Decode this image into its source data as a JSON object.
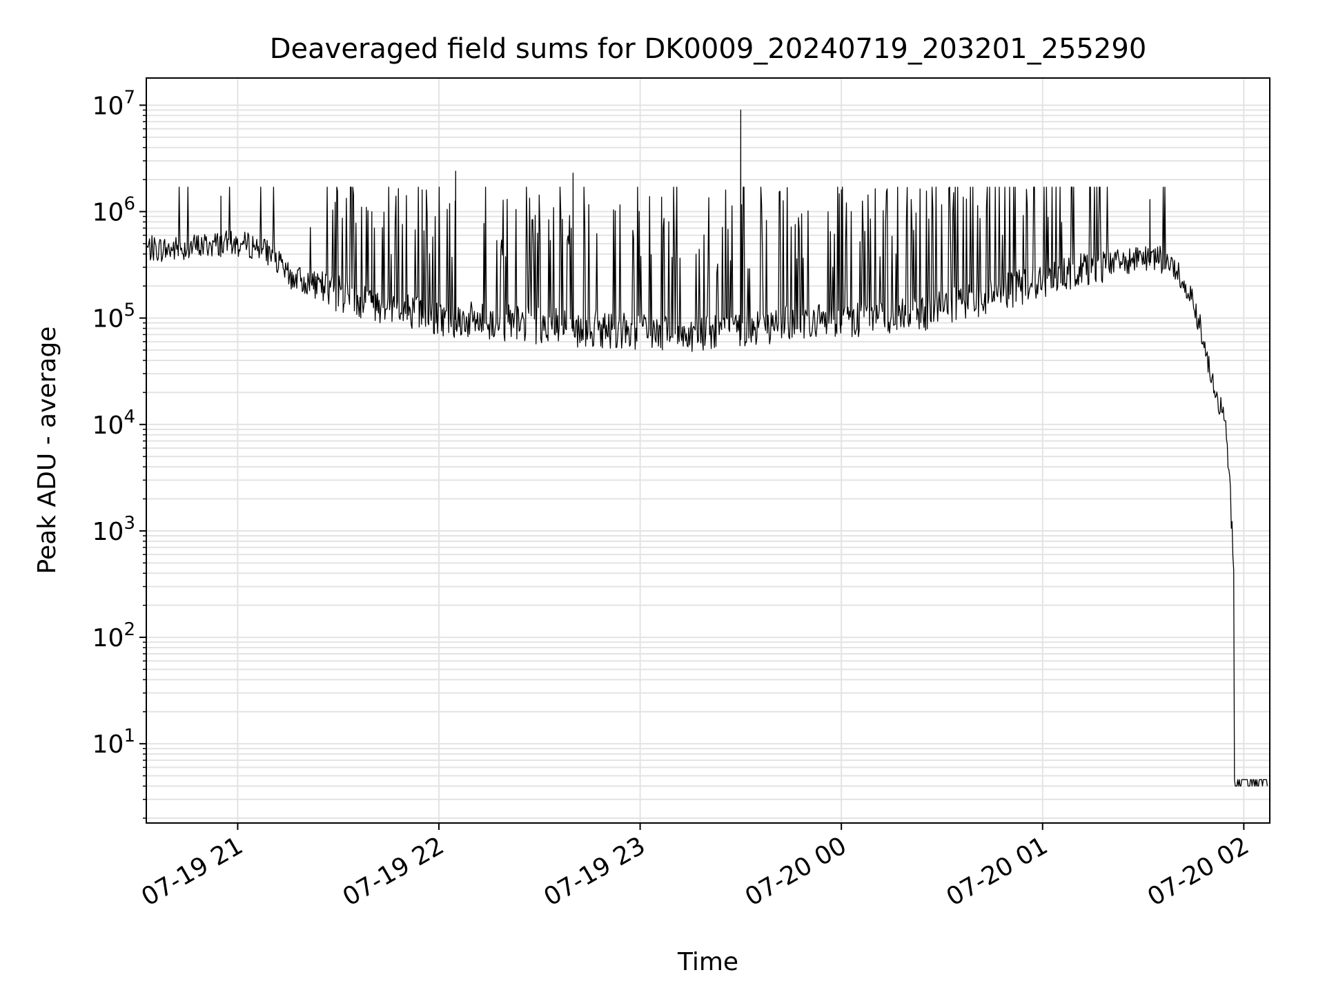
{
  "chart_data": {
    "type": "line",
    "title": "Deaveraged field sums for DK0009_20240719_203201_255290",
    "xlabel": "Time",
    "ylabel": "Peak ADU - average",
    "yscale": "log",
    "ylim": [
      1.8,
      18000000
    ],
    "xlim": [
      "2024-07-19 20:32:45",
      "2024-07-20 02:07:45"
    ],
    "grid": true,
    "line_color": "#000000",
    "x_ticks": [
      {
        "time": "2024-07-19 21:00",
        "label": "07-19 21"
      },
      {
        "time": "2024-07-19 22:00",
        "label": "07-19 22"
      },
      {
        "time": "2024-07-19 23:00",
        "label": "07-19 23"
      },
      {
        "time": "2024-07-20 00:00",
        "label": "07-20 00"
      },
      {
        "time": "2024-07-20 01:00",
        "label": "07-20 01"
      },
      {
        "time": "2024-07-20 02:00",
        "label": "07-20 02"
      }
    ],
    "y_ticks": [
      {
        "value": 10,
        "base": "10",
        "exp": "1"
      },
      {
        "value": 100,
        "base": "10",
        "exp": "2"
      },
      {
        "value": 1000,
        "base": "10",
        "exp": "3"
      },
      {
        "value": 10000,
        "base": "10",
        "exp": "4"
      },
      {
        "value": 100000,
        "base": "10",
        "exp": "5"
      },
      {
        "value": 1000000,
        "base": "10",
        "exp": "6"
      },
      {
        "value": 10000000,
        "base": "10",
        "exp": "7"
      }
    ],
    "series": [
      {
        "x": [
          "2024-07-19 20:33",
          "2024-07-19 20:40",
          "2024-07-19 20:50",
          "2024-07-19 20:55",
          "2024-07-19 21:05",
          "2024-07-19 21:10",
          "2024-07-19 21:15",
          "2024-07-19 21:20",
          "2024-07-19 21:30",
          "2024-07-19 21:40",
          "2024-07-19 21:50",
          "2024-07-19 22:00",
          "2024-07-19 22:10",
          "2024-07-19 22:20",
          "2024-07-19 22:30",
          "2024-07-19 22:40",
          "2024-07-19 22:50",
          "2024-07-19 23:00",
          "2024-07-19 23:10",
          "2024-07-19 23:20",
          "2024-07-19 23:30",
          "2024-07-19 23:40",
          "2024-07-19 23:50",
          "2024-07-20 00:00",
          "2024-07-20 00:10",
          "2024-07-20 00:20",
          "2024-07-20 00:30",
          "2024-07-20 00:40",
          "2024-07-20 00:50",
          "2024-07-20 01:00",
          "2024-07-20 01:10",
          "2024-07-20 01:20",
          "2024-07-20 01:30",
          "2024-07-20 01:35",
          "2024-07-20 01:40",
          "2024-07-20 01:45",
          "2024-07-20 01:48",
          "2024-07-20 01:51",
          "2024-07-20 01:53",
          "2024-07-20 01:55",
          "2024-07-20 01:56",
          "2024-07-20 01:57",
          "2024-07-20 01:58",
          "2024-07-20 02:00",
          "2024-07-20 02:07"
        ],
        "y": [
          450000,
          440000,
          480000,
          500000,
          480000,
          400000,
          250000,
          220000,
          170000,
          140000,
          120000,
          100000,
          95000,
          90000,
          85000,
          80000,
          78000,
          75000,
          72000,
          70000,
          80000,
          85000,
          90000,
          95000,
          100000,
          110000,
          120000,
          150000,
          180000,
          220000,
          280000,
          330000,
          350000,
          360000,
          280000,
          150000,
          60000,
          25000,
          15000,
          8000,
          2000,
          500,
          4,
          4,
          4
        ]
      }
    ],
    "spikes": [
      {
        "time": "2024-07-19 20:55",
        "value": 1400000
      },
      {
        "time": "2024-07-19 21:40",
        "value": 1000000
      },
      {
        "time": "2024-07-19 21:55",
        "value": 1600000
      },
      {
        "time": "2024-07-19 22:05",
        "value": 2400000
      },
      {
        "time": "2024-07-19 22:40",
        "value": 2300000
      },
      {
        "time": "2024-07-19 23:30",
        "value": 9000000
      },
      {
        "time": "2024-07-20 00:00",
        "value": 1600000
      },
      {
        "time": "2024-07-20 01:32",
        "value": 1300000
      }
    ]
  }
}
